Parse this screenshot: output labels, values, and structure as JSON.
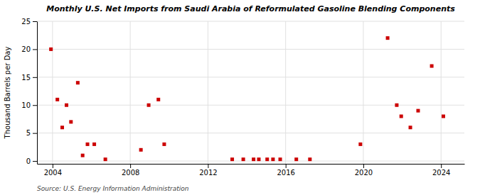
{
  "chart_data": {
    "type": "scatter",
    "title": "Monthly U.S. Net Imports from Saudi Arabia of Reformulated Gasoline Blending Components",
    "ylabel": "Thousand Barrels per Day",
    "annotation": "Source: U.S. Energy Information Administration",
    "color": "#cc0000",
    "marker": "square",
    "grid": true,
    "xlim": [
      2003.2,
      2025.2
    ],
    "ylim": [
      -0.5,
      25
    ],
    "xticks": [
      2004,
      2008,
      2012,
      2016,
      2020,
      2024
    ],
    "yticks": [
      0,
      5,
      10,
      15,
      20,
      25
    ],
    "x": [
      2003.92,
      2004.25,
      2004.5,
      2004.72,
      2004.95,
      2005.3,
      2005.55,
      2005.8,
      2006.15,
      2006.72,
      2008.55,
      2008.95,
      2009.45,
      2009.75,
      2013.25,
      2013.82,
      2014.35,
      2014.62,
      2015.05,
      2015.35,
      2015.72,
      2016.55,
      2017.25,
      2019.85,
      2021.25,
      2021.72,
      2021.95,
      2022.42,
      2022.82,
      2023.52,
      2024.12
    ],
    "values": [
      20,
      11,
      6,
      10,
      7,
      14,
      1,
      3,
      3,
      0.3,
      2,
      10,
      11,
      3,
      0.3,
      0.3,
      0.3,
      0.3,
      0.3,
      0.3,
      0.3,
      0.3,
      0.3,
      3,
      22,
      10,
      8,
      6,
      9,
      17,
      8
    ]
  }
}
